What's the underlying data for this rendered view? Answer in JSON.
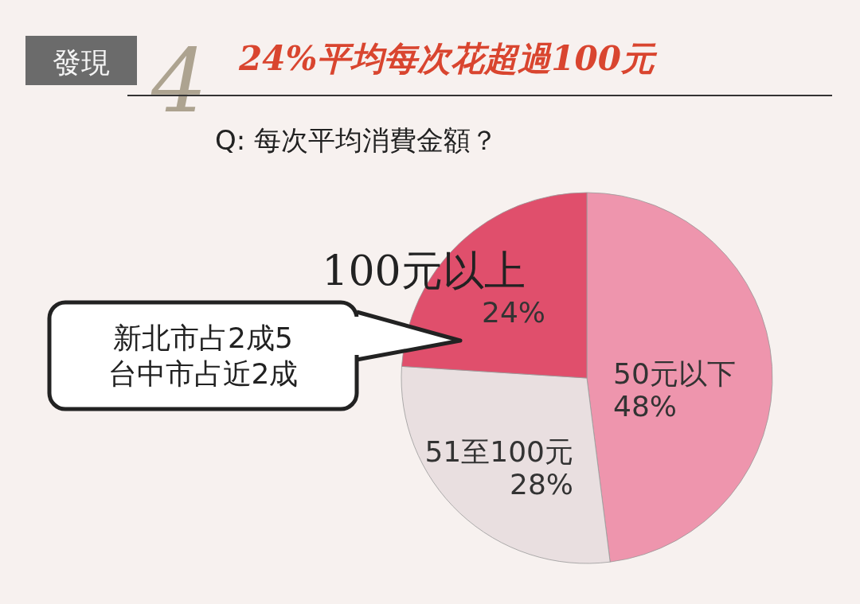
{
  "chart_data": {
    "type": "pie",
    "title": "24%平均每次花超過100元",
    "subtitle": "Q: 每次平均消費金額？",
    "categories": [
      "50元以下",
      "51至100元",
      "100元以上"
    ],
    "values": [
      48,
      28,
      24
    ],
    "value_labels": [
      "48%",
      "28%",
      "24%"
    ],
    "colors": [
      "#ee95ad",
      "#e9dfe0",
      "#e04f6c"
    ],
    "annotations": [
      "發現",
      "4",
      "新北市占2成5\n台中市占近2成"
    ]
  }
}
